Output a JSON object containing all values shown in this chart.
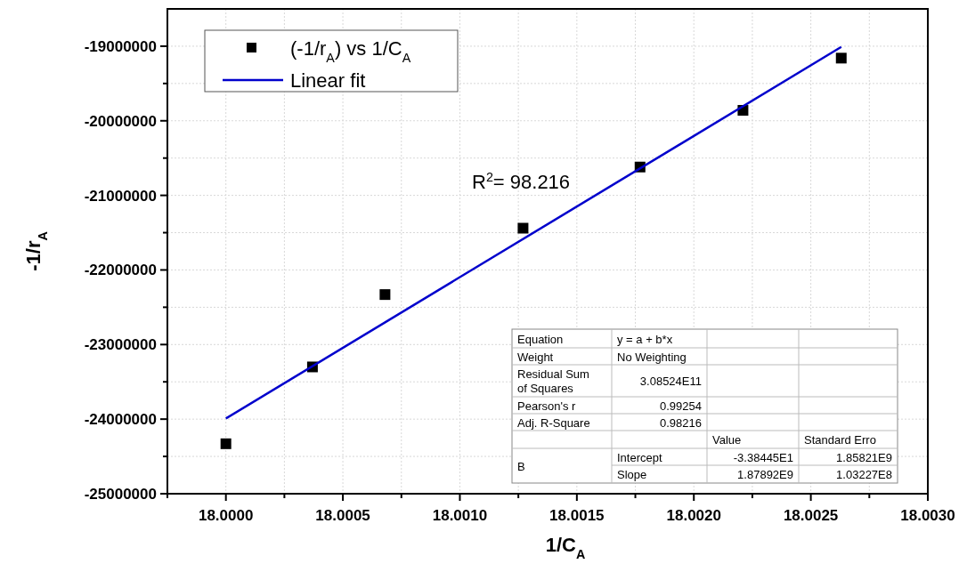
{
  "chart_data": {
    "type": "scatter",
    "xlabel": "1/C$_{A}$",
    "ylabel": "-1/r$_{A}$",
    "x": [
      18.0,
      18.00037,
      18.00068,
      18.00127,
      18.00177,
      18.00221,
      18.00263
    ],
    "series": [
      {
        "name": "(-1/r$_{A}$) vs 1/C$_{A}$",
        "type": "scatter",
        "color": "#000000",
        "marker": "square",
        "values": [
          -24330000,
          -23300000,
          -22330000,
          -21440000,
          -20620000,
          -19860000,
          -19160000
        ]
      },
      {
        "name": "Linear fit",
        "type": "line",
        "color": "#0000cc",
        "line_style": "solid",
        "x": [
          18.0,
          18.00263
        ],
        "values": [
          -23990000,
          -19010000
        ]
      }
    ],
    "xlim": [
      17.99975,
      18.003
    ],
    "xticks": [
      {
        "value": 17.99975,
        "label": null
      },
      {
        "value": 18.0,
        "label": "18.0000"
      },
      {
        "value": 18.00025,
        "label": null
      },
      {
        "value": 18.0005,
        "label": "18.0005"
      },
      {
        "value": 18.00075,
        "label": null
      },
      {
        "value": 18.001,
        "label": "18.0010"
      },
      {
        "value": 18.00125,
        "label": null
      },
      {
        "value": 18.0015,
        "label": "18.0015"
      },
      {
        "value": 18.00175,
        "label": null
      },
      {
        "value": 18.002,
        "label": "18.0020"
      },
      {
        "value": 18.00225,
        "label": null
      },
      {
        "value": 18.0025,
        "label": "18.0025"
      },
      {
        "value": 18.00275,
        "label": null
      },
      {
        "value": 18.003,
        "label": "18.0030"
      }
    ],
    "ylim": [
      -25000000,
      -18500000
    ],
    "yticks": [
      {
        "value": -25000000,
        "label": "-25000000"
      },
      {
        "value": -24500000,
        "label": null
      },
      {
        "value": -24000000,
        "label": "-24000000"
      },
      {
        "value": -23500000,
        "label": null
      },
      {
        "value": -23000000,
        "label": "-23000000"
      },
      {
        "value": -22500000,
        "label": null
      },
      {
        "value": -22000000,
        "label": "-22000000"
      },
      {
        "value": -21500000,
        "label": null
      },
      {
        "value": -21000000,
        "label": "-21000000"
      },
      {
        "value": -20500000,
        "label": null
      },
      {
        "value": -20000000,
        "label": "-20000000"
      },
      {
        "value": -19500000,
        "label": null
      },
      {
        "value": -19000000,
        "label": "-19000000"
      }
    ],
    "grid": true,
    "legend": "top left",
    "annotations": [
      "R$^{2}$= 98.216",
      "Equation",
      "y = a + b*x",
      "Weight",
      "No Weighting",
      "Residual Sum",
      "of Squares",
      "3.08524E11",
      "Pearson's r",
      "0.99254",
      "Adj. R-Square",
      "0.98216",
      "Value",
      "Standard Erro",
      "B",
      "Intercept",
      "-3.38445E1",
      "1.85821E9",
      "Slope",
      "1.87892E9",
      "1.03227E8"
    ]
  }
}
